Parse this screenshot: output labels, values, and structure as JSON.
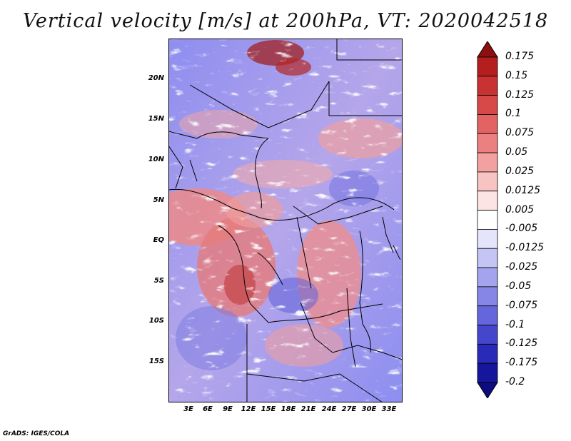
{
  "title": "Vertical velocity [m/s] at 200hPa, VT: 2020042518",
  "map": {
    "variable": "Vertical velocity",
    "units": "m/s",
    "level": "200hPa",
    "valid_time": "2020042518",
    "region": "Central Africa"
  },
  "y_axis": {
    "labels": [
      "20N",
      "15N",
      "10N",
      "5N",
      "EQ",
      "5S",
      "10S",
      "15S"
    ]
  },
  "x_axis": {
    "labels": [
      "3E",
      "6E",
      "9E",
      "12E",
      "15E",
      "18E",
      "21E",
      "24E",
      "27E",
      "30E",
      "33E"
    ]
  },
  "colorbar": {
    "labels": [
      "0.175",
      "0.15",
      "0.125",
      "0.1",
      "0.075",
      "0.05",
      "0.025",
      "0.0125",
      "0.005",
      "-0.005",
      "-0.0125",
      "-0.025",
      "-0.05",
      "-0.075",
      "-0.1",
      "-0.125",
      "-0.175",
      "-0.2"
    ],
    "colors": [
      "#8c1010",
      "#b41e1e",
      "#c83232",
      "#d74848",
      "#e36262",
      "#ec8080",
      "#f3a0a0",
      "#f8c3c3",
      "#fde4e4",
      "#ffffff",
      "#e4e4fb",
      "#c4c4f5",
      "#a4a4ee",
      "#8686e6",
      "#6666dc",
      "#4646cd",
      "#2a2ab8",
      "#16169c",
      "#0c0c80"
    ]
  },
  "footer": "GrADS: IGES/COLA"
}
